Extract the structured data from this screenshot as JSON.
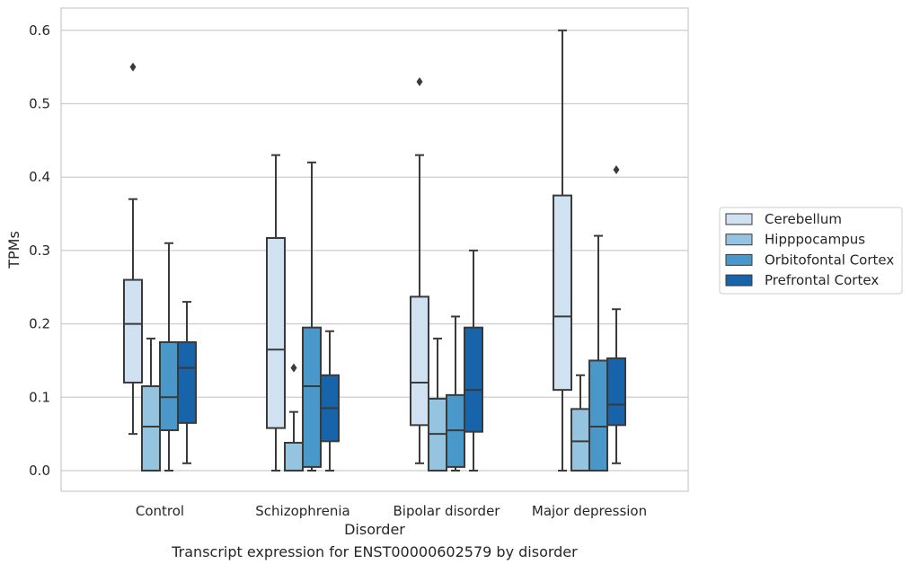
{
  "chart_data": {
    "type": "box",
    "xlabel": "Disorder",
    "ylabel": "TPMs",
    "caption": "Transcript expression for ENST00000602579 by disorder",
    "ylim": [
      -0.03,
      0.63
    ],
    "yticks": [
      "0.0",
      "0.1",
      "0.2",
      "0.3",
      "0.4",
      "0.5",
      "0.6"
    ],
    "grid": true,
    "legend_position": "right",
    "categories": [
      "Control",
      "Schizophrenia",
      "Bipolar disorder",
      "Major depression"
    ],
    "series": [
      {
        "name": "Cerebellum",
        "color": "#d0e1f2",
        "boxes": [
          {
            "whislo": 0.05,
            "q1": 0.12,
            "med": 0.2,
            "q3": 0.26,
            "whishi": 0.37,
            "fliers": [
              0.55
            ]
          },
          {
            "whislo": 0.0,
            "q1": 0.058,
            "med": 0.165,
            "q3": 0.317,
            "whishi": 0.43,
            "fliers": []
          },
          {
            "whislo": 0.01,
            "q1": 0.062,
            "med": 0.12,
            "q3": 0.237,
            "whishi": 0.43,
            "fliers": [
              0.53
            ]
          },
          {
            "whislo": 0.0,
            "q1": 0.11,
            "med": 0.21,
            "q3": 0.375,
            "whishi": 0.6,
            "fliers": []
          }
        ]
      },
      {
        "name": "Hipppocampus",
        "color": "#94c4df",
        "boxes": [
          {
            "whislo": 0.0,
            "q1": 0.0,
            "med": 0.06,
            "q3": 0.115,
            "whishi": 0.18,
            "fliers": []
          },
          {
            "whislo": 0.0,
            "q1": 0.0,
            "med": 0.0,
            "q3": 0.038,
            "whishi": 0.08,
            "fliers": [
              0.14
            ]
          },
          {
            "whislo": 0.0,
            "q1": 0.0,
            "med": 0.05,
            "q3": 0.098,
            "whishi": 0.18,
            "fliers": []
          },
          {
            "whislo": 0.0,
            "q1": 0.0,
            "med": 0.04,
            "q3": 0.084,
            "whishi": 0.13,
            "fliers": []
          }
        ]
      },
      {
        "name": "Orbitofontal Cortex",
        "color": "#4a98c9",
        "boxes": [
          {
            "whislo": 0.0,
            "q1": 0.055,
            "med": 0.1,
            "q3": 0.175,
            "whishi": 0.31,
            "fliers": []
          },
          {
            "whislo": 0.0,
            "q1": 0.005,
            "med": 0.115,
            "q3": 0.195,
            "whishi": 0.42,
            "fliers": []
          },
          {
            "whislo": 0.0,
            "q1": 0.005,
            "med": 0.055,
            "q3": 0.103,
            "whishi": 0.21,
            "fliers": []
          },
          {
            "whislo": 0.0,
            "q1": 0.0,
            "med": 0.06,
            "q3": 0.15,
            "whishi": 0.32,
            "fliers": []
          }
        ]
      },
      {
        "name": "Prefrontal Cortex",
        "color": "#1764ab",
        "boxes": [
          {
            "whislo": 0.01,
            "q1": 0.065,
            "med": 0.14,
            "q3": 0.175,
            "whishi": 0.23,
            "fliers": []
          },
          {
            "whislo": 0.0,
            "q1": 0.04,
            "med": 0.085,
            "q3": 0.13,
            "whishi": 0.19,
            "fliers": []
          },
          {
            "whislo": 0.0,
            "q1": 0.053,
            "med": 0.11,
            "q3": 0.195,
            "whishi": 0.3,
            "fliers": []
          },
          {
            "whislo": 0.01,
            "q1": 0.062,
            "med": 0.09,
            "q3": 0.153,
            "whishi": 0.22,
            "fliers": [
              0.41
            ]
          }
        ]
      }
    ]
  }
}
